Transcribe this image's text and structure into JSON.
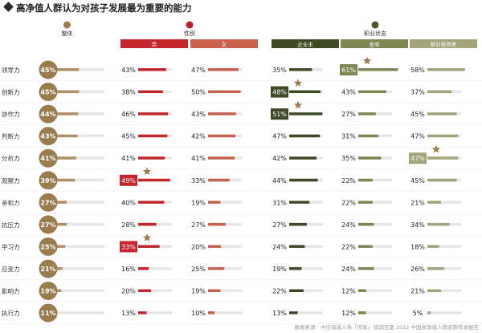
{
  "title": "高净值人群认为对孩子发展最为重要的能力",
  "source": "数据来源：中信保诚人寿「传家」· 胡润百富 2022 中国高净值人群家族传承报告",
  "colors": {
    "overall": "#9a7c4e",
    "overall_bar": "#b09068",
    "gender_header": "#b8232b",
    "male": "#c1272d",
    "female": "#c8624d",
    "occupation_header": "#4a5a2e",
    "owner": "#3e4a25",
    "gold": "#7e8653",
    "investor": "#a3a37c",
    "track": "#e6e6e6",
    "star": "#9b7a4c"
  },
  "chart_data": {
    "type": "bar",
    "title": "高净值人群认为对孩子发展最为重要的能力",
    "categories": [
      "领导力",
      "创新力",
      "协作力",
      "判断力",
      "分析力",
      "观察力",
      "亲和力",
      "抗压力",
      "学习力",
      "应变力",
      "影响力",
      "执行力"
    ],
    "groups": [
      {
        "name": "整体",
        "series": [
          {
            "name": "整体",
            "values": [
              45,
              45,
              44,
              43,
              41,
              39,
              27,
              27,
              25,
              21,
              19,
              11
            ]
          }
        ]
      },
      {
        "name": "性别",
        "series": [
          {
            "name": "男",
            "values": [
              43,
              38,
              46,
              45,
              41,
              49,
              40,
              28,
              33,
              16,
              20,
              13
            ],
            "highlight": [
              5,
              8
            ]
          },
          {
            "name": "女",
            "values": [
              47,
              50,
              43,
              42,
              41,
              33,
              19,
              27,
              20,
              25,
              19,
              10
            ],
            "highlight": []
          }
        ]
      },
      {
        "name": "职业状态",
        "series": [
          {
            "name": "企业主",
            "values": [
              35,
              48,
              51,
              47,
              42,
              44,
              31,
              27,
              24,
              19,
              22,
              13
            ],
            "highlight": [
              1,
              2
            ]
          },
          {
            "name": "金领",
            "values": [
              61,
              43,
              27,
              31,
              35,
              22,
              22,
              24,
              22,
              24,
              12,
              12
            ],
            "highlight": [
              0
            ]
          },
          {
            "name": "职业投资者",
            "values": [
              58,
              37,
              45,
              47,
              47,
              45,
              21,
              34,
              18,
              26,
              21,
              5
            ],
            "highlight": [
              4
            ]
          }
        ]
      }
    ],
    "unit": "%",
    "ylim": [
      0,
      100
    ]
  }
}
